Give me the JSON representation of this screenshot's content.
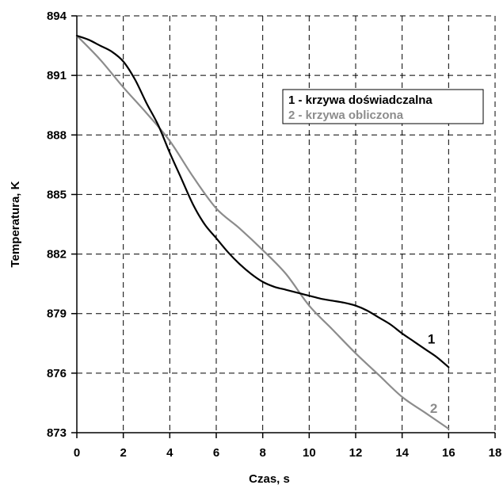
{
  "chart_data": {
    "type": "line",
    "xlabel": "Czas, s",
    "ylabel": "Temperatura, K",
    "xlim": [
      0,
      18
    ],
    "ylim": [
      873,
      894
    ],
    "x_ticks": [
      0,
      2,
      4,
      6,
      8,
      10,
      12,
      14,
      16,
      18
    ],
    "y_ticks": [
      873,
      876,
      879,
      882,
      885,
      888,
      891,
      894
    ],
    "x_tick_labels": [
      "0",
      "2",
      "4",
      "6",
      "8",
      "10",
      "12",
      "14",
      "16",
      "18"
    ],
    "y_tick_labels": [
      "873",
      "876",
      "879",
      "882",
      "885",
      "888",
      "891",
      "894"
    ],
    "grid": true,
    "legend_position": "top-right",
    "legend": [
      "1 - krzywa doświadczalna",
      "2 - krzywa obliczona"
    ],
    "series": [
      {
        "name": "1 - krzywa doświadczalna",
        "label": "1",
        "color": "#000000",
        "x": [
          0,
          0.5,
          1,
          1.5,
          2,
          2.5,
          3,
          3.5,
          4,
          4.5,
          5,
          5.5,
          6,
          6.5,
          7,
          7.5,
          8,
          8.5,
          9,
          9.5,
          10,
          10.5,
          11,
          11.5,
          12,
          12.5,
          13,
          13.5,
          14,
          14.5,
          15,
          15.5,
          16
        ],
        "y": [
          893.0,
          892.8,
          892.5,
          892.2,
          891.7,
          890.8,
          889.6,
          888.5,
          887.1,
          885.8,
          884.5,
          883.5,
          882.8,
          882.1,
          881.5,
          881.0,
          880.6,
          880.35,
          880.2,
          880.05,
          879.9,
          879.75,
          879.65,
          879.55,
          879.4,
          879.15,
          878.8,
          878.45,
          878.0,
          877.6,
          877.2,
          876.8,
          876.3
        ]
      },
      {
        "name": "2 - krzywa obliczona",
        "label": "2",
        "color": "#8c8c8c",
        "x": [
          0,
          1,
          2,
          3,
          4,
          5,
          6,
          7,
          8,
          9,
          10,
          11,
          12,
          13,
          14,
          15,
          16
        ],
        "y": [
          893.0,
          891.8,
          890.4,
          889.1,
          887.7,
          885.9,
          884.3,
          883.3,
          882.2,
          881.0,
          879.4,
          878.2,
          877.0,
          875.9,
          874.8,
          874.0,
          873.2
        ]
      }
    ]
  }
}
